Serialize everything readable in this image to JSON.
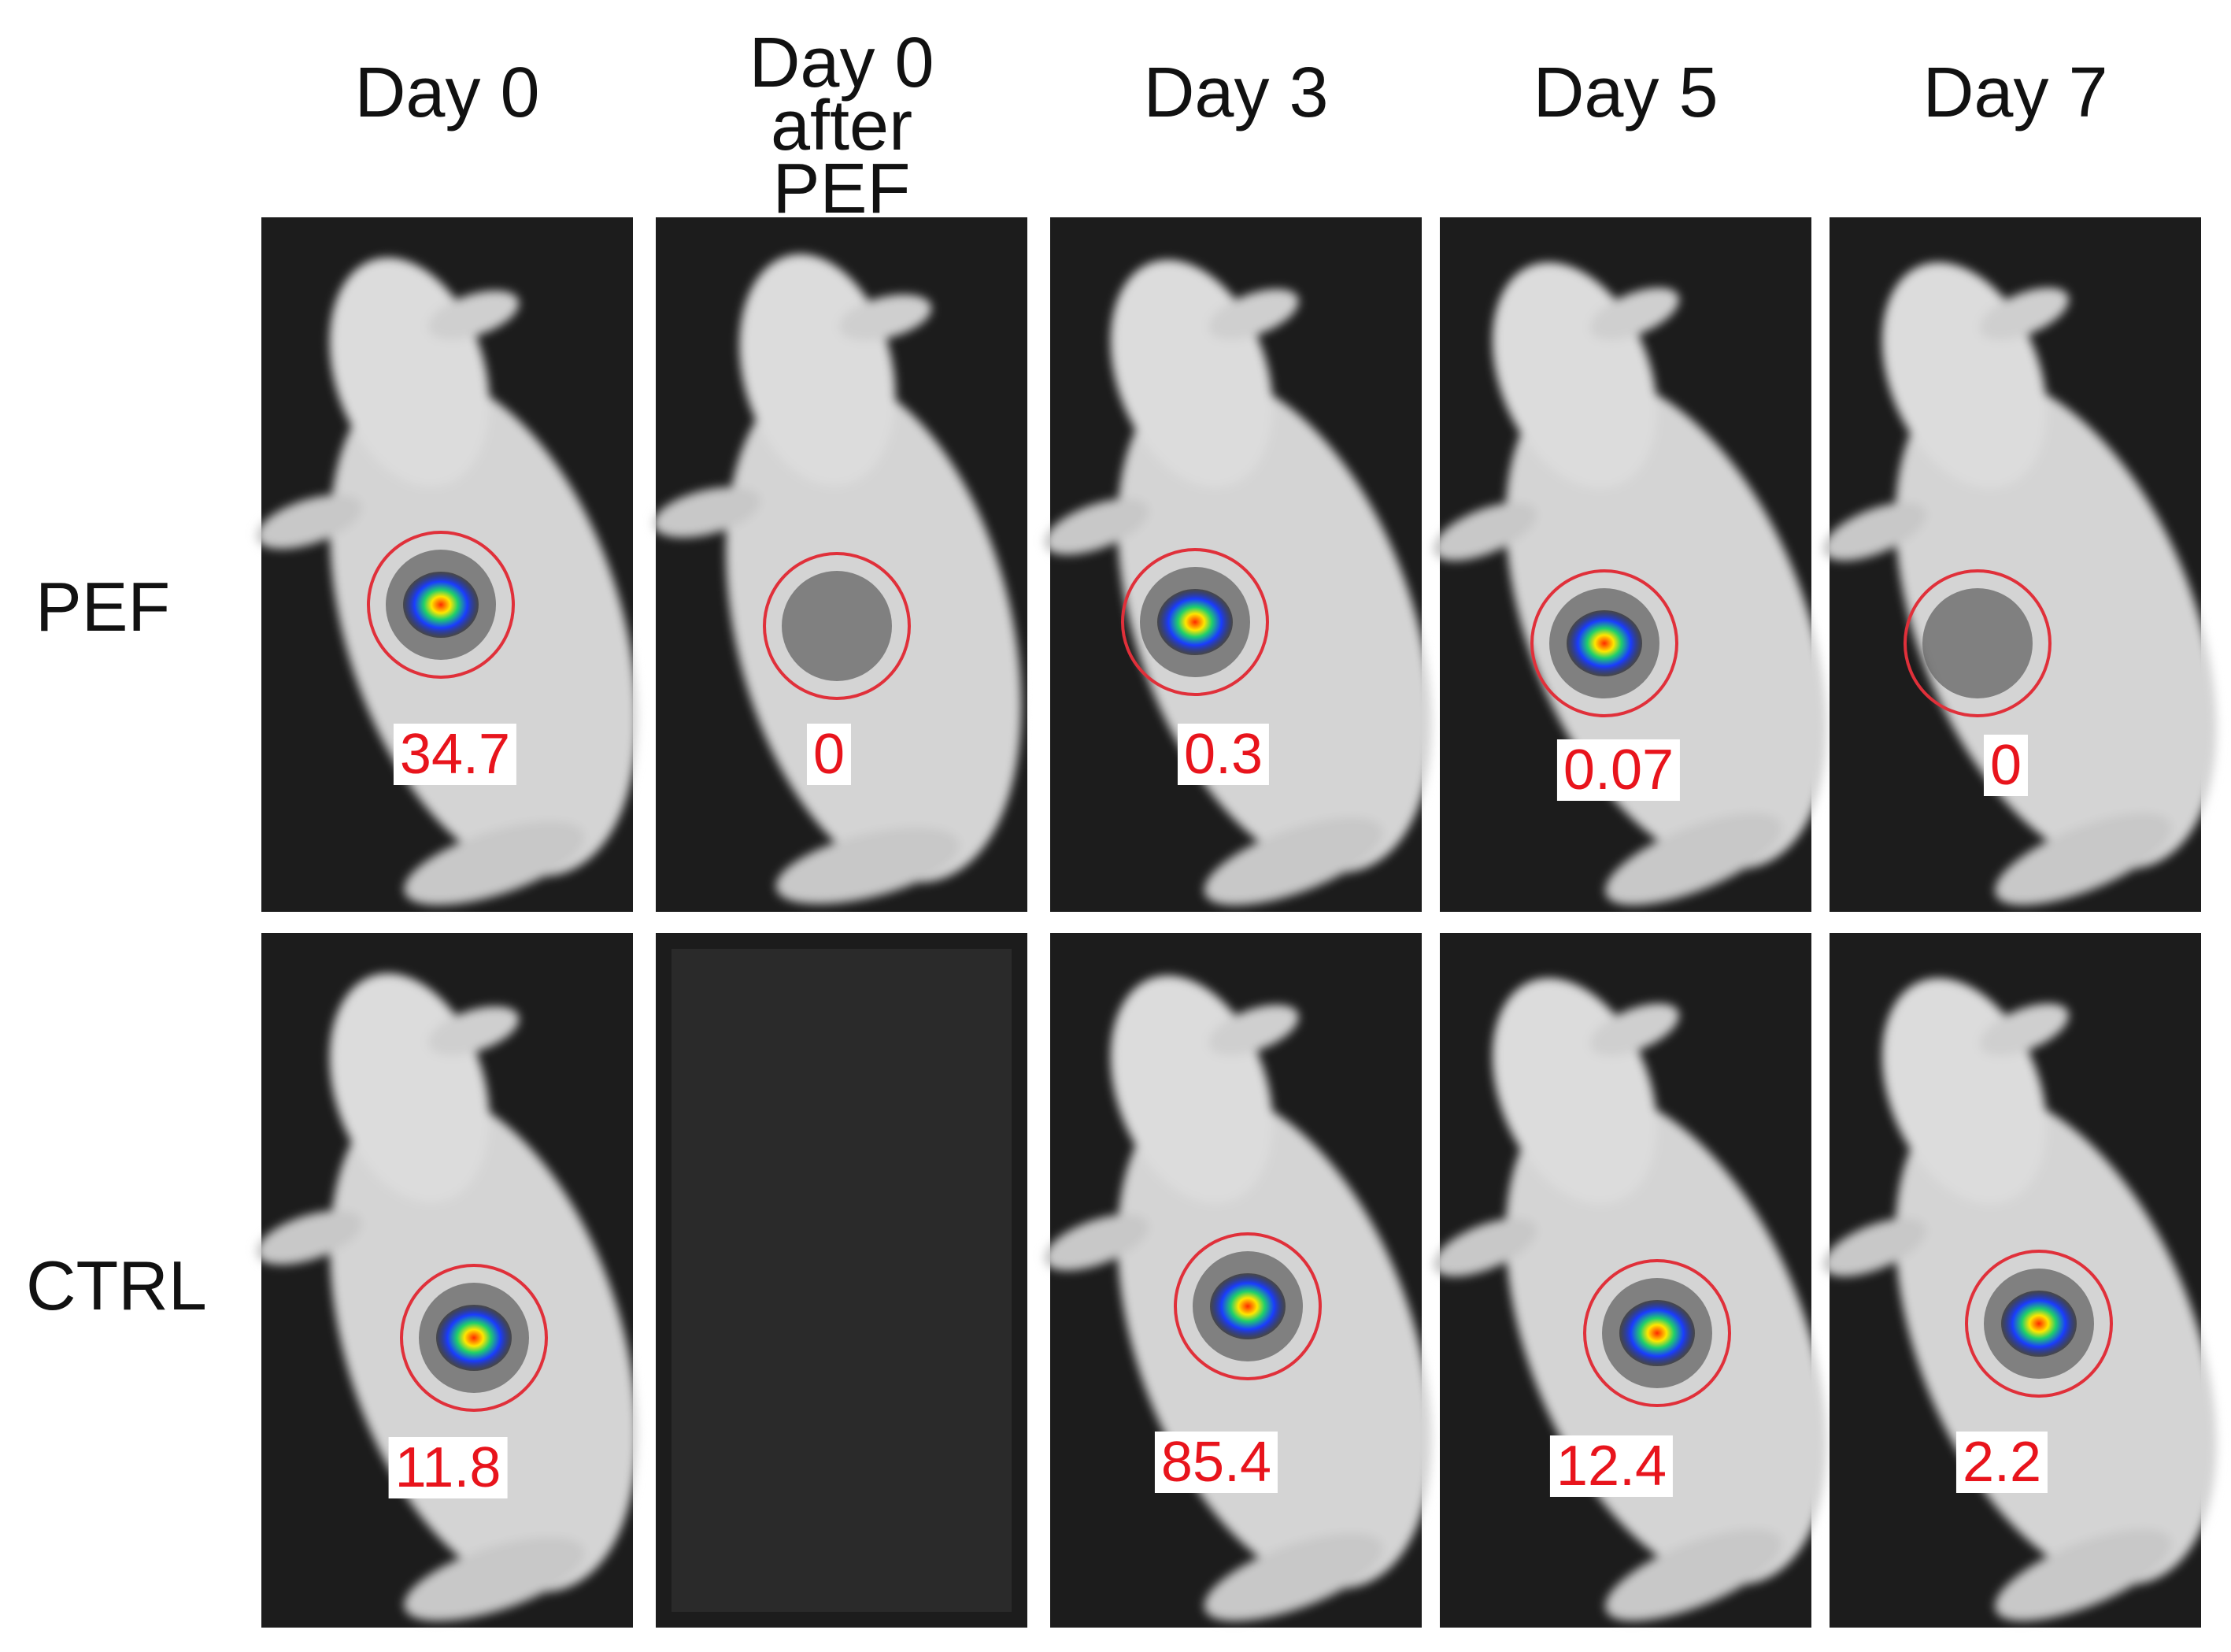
{
  "columns": [
    "Day 0",
    "Day 0 after PEF",
    "Day 3",
    "Day 5",
    "Day 7"
  ],
  "rows": [
    {
      "label": "PEF",
      "values": [
        "34.7",
        "0",
        "0.3",
        "0.07",
        "0"
      ]
    },
    {
      "label": "CTRL",
      "values": [
        "11.8",
        null,
        "85.4",
        "12.4",
        "2.2"
      ]
    }
  ]
}
